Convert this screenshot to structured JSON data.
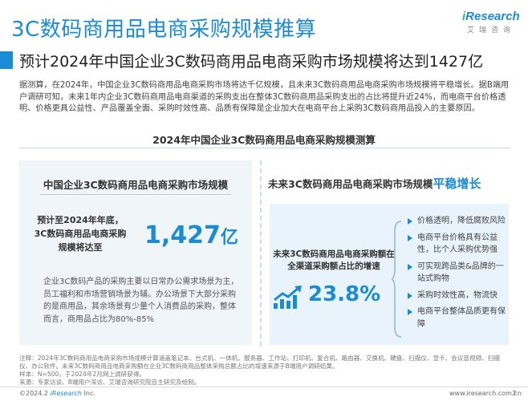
{
  "header": {
    "title": "3C数码商用品电商采购规模推算",
    "logo_brand_i": "i",
    "logo_brand_rest": "Research",
    "logo_sub": "艾瑞咨询"
  },
  "subtitle": "预计2024年中国企业3C数码商用品电商采购市场规模将达到1427亿",
  "intro": "据测算，在2024年，中国企业3C数码商用品电商采购市场将达千亿规模，且未来3C数码商用品电商采购市场规模将平稳增长。据B端用户调研可知，未来1年内企业3C数码商用品电商渠道的采购支出在整体3C数码商用品采购支出的占比将提升近24%，而电商平台价格透明、价格更具公益性、产品覆盖全面、采购时效性高、品质有保障是企业加大在电商平台上采购3C数码商用品投入的主要原因。",
  "section_title": "2024年中国企业3C数码商用品电商采购规模测算",
  "left": {
    "heading": "中国企业3C数码商用品电商采购市场规模",
    "forecast_label": "预计至2024年年底，3C数码商用品电商采购规模将达至",
    "value": "1,427",
    "unit": "亿",
    "description": "企业3C数码产品的采购主要以日常办公需求场景为主，员工福利和市场营销场景为辅。办公场景下大部分采购的是商用品，其余场景有少量个人消费品的采购，整体而言，商用品占比为80%-85%"
  },
  "right": {
    "heading_prefix": "未来3C数码商用品电商采购市场规模",
    "heading_highlight": "平稳增长",
    "share_label": "未来3C数码商用品电商采购额在全渠道采购额占比的增速",
    "share_value": "23.8%",
    "reasons": [
      "价格透明，降低腐败风险",
      "电商平台价格具有公益性，比个人采购优势强",
      "可实现跨品类&品牌的一站式购物",
      "采购时效性高，物流快",
      "电商平台整体品质更有保障"
    ]
  },
  "notes": [
    "注释：2024年3C数码商用品电商采购市场规模计算涵盖笔记本、台式机、一体机、服务器、工作站、打印机、复合机、路由器、交换机、硬盘、扫描仪、显卡、会议音视频、扫描仪、办公软件。未来3C数码商用品电商采购额在企业3C数码商用品整体采购总额占比的增速来源于B端用户调研结果。",
    "样本：N=500，于2024年2月网上调研获得。",
    "来源：专家访谈、B端用户深访、艾瑞咨询研究院自主研究及绘制。"
  ],
  "footer": {
    "copyright_prefix": "©2024.2 ",
    "copyright_brand": "iResearch",
    "copyright_suffix": " Inc.",
    "website": "www.iresearch.com.cn",
    "page_number": "7"
  },
  "colors": {
    "accent": "#1a8bd4",
    "logo_green": "#2fbf6b",
    "panel_light": "#f0f5fa",
    "panel_blue": "#e8f3fb"
  },
  "icons": {
    "growth": "growth-arrow-icon",
    "bullet": "triangle-bullet-icon",
    "bracket": "bracket-icon"
  }
}
